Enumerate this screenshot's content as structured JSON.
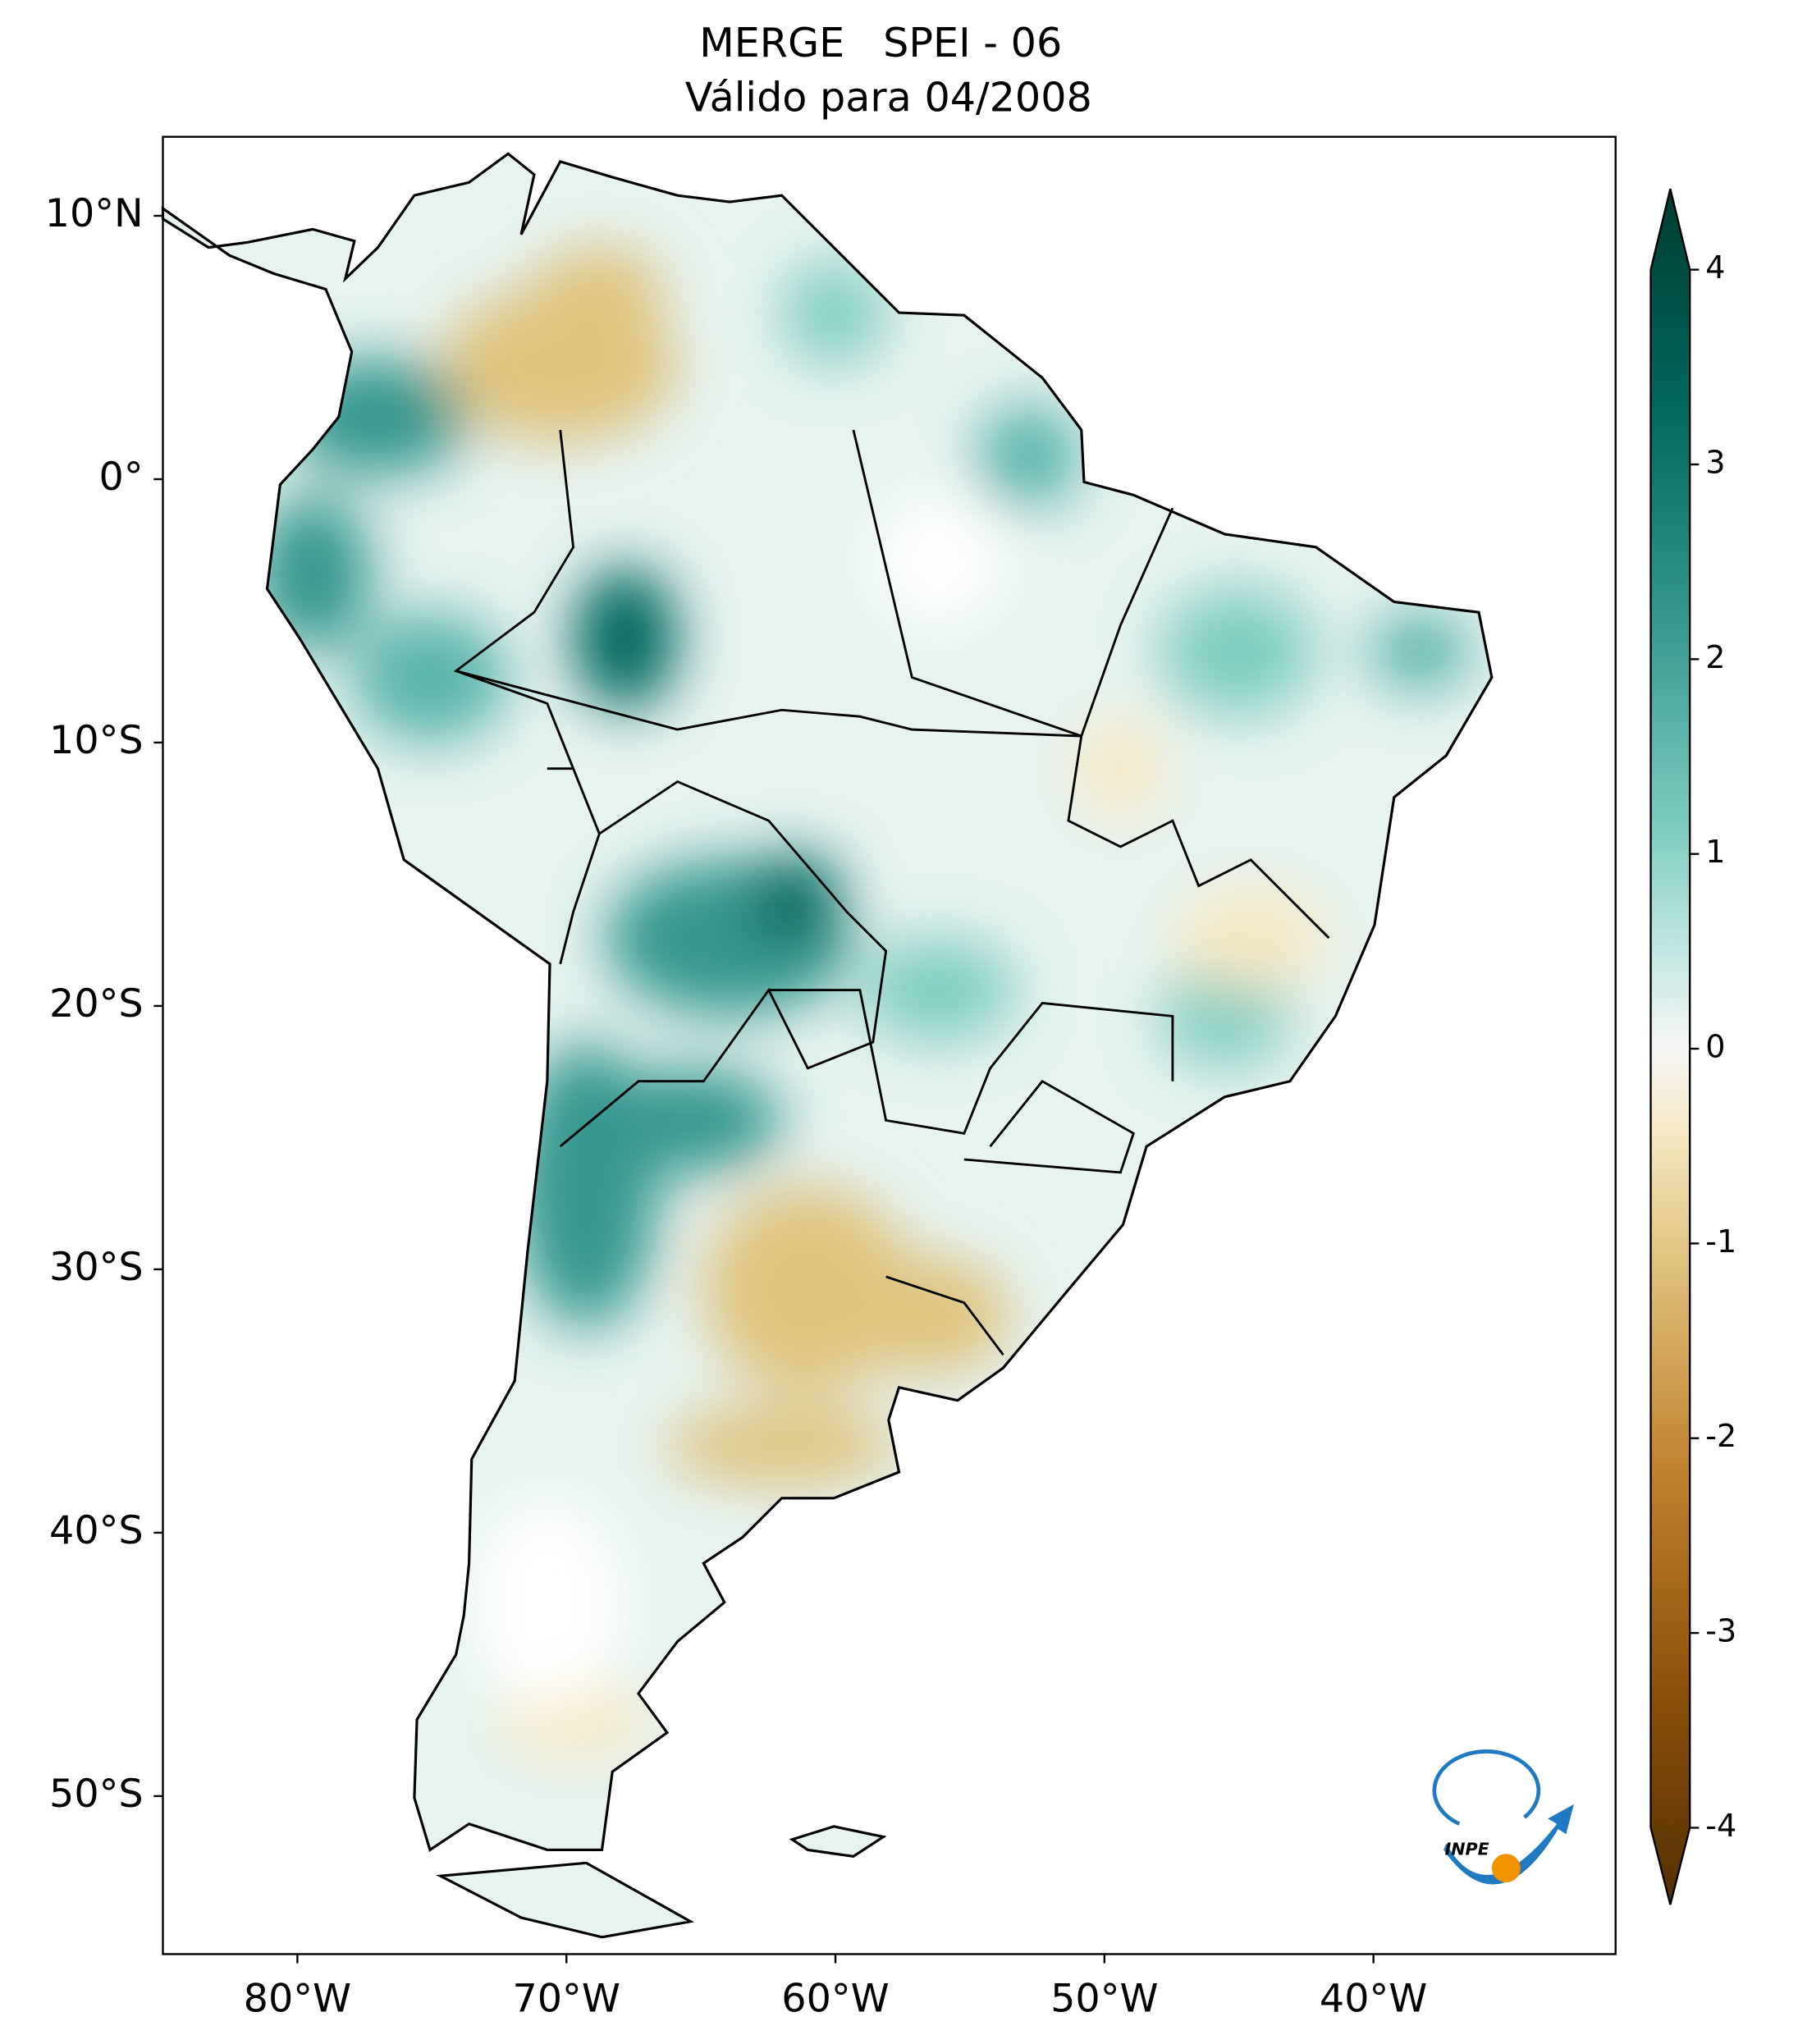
{
  "chart_data": {
    "type": "map",
    "title": "MERGE   SPEI - 06",
    "subtitle": "Válido para 04/2008",
    "xlim": [
      -85,
      -31
    ],
    "ylim": [
      -56,
      13
    ],
    "xticks": [
      {
        "value": -80,
        "label": "80°W"
      },
      {
        "value": -70,
        "label": "70°W"
      },
      {
        "value": -60,
        "label": "60°W"
      },
      {
        "value": -50,
        "label": "50°W"
      },
      {
        "value": -40,
        "label": "40°W"
      }
    ],
    "yticks": [
      {
        "value": 10,
        "label": "10°N"
      },
      {
        "value": 0,
        "label": "0°"
      },
      {
        "value": -10,
        "label": "10°S"
      },
      {
        "value": -20,
        "label": "20°S"
      },
      {
        "value": -30,
        "label": "30°S"
      },
      {
        "value": -40,
        "label": "40°S"
      },
      {
        "value": -50,
        "label": "50°S"
      }
    ],
    "colorbar": {
      "lim": [
        -4,
        4
      ],
      "ticks": [
        4,
        3,
        2,
        1,
        0,
        -1,
        -2,
        -3,
        -4
      ]
    },
    "logo": "INPE"
  }
}
